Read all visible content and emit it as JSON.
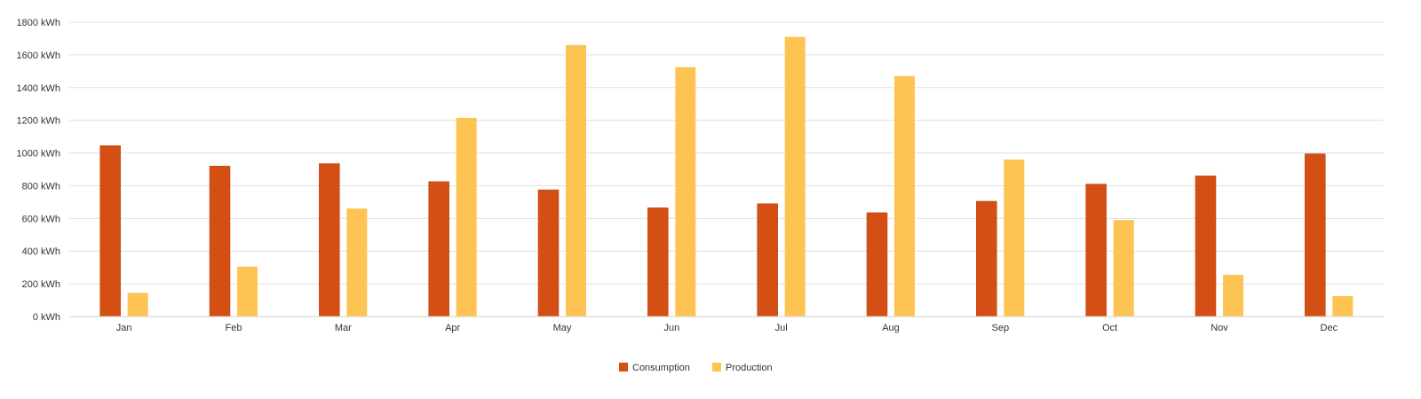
{
  "chart_data": {
    "type": "bar",
    "categories": [
      "Jan",
      "Feb",
      "Mar",
      "Apr",
      "May",
      "Jun",
      "Jul",
      "Aug",
      "Sep",
      "Oct",
      "Nov",
      "Dec"
    ],
    "series": [
      {
        "name": "Consumption",
        "color": "#d44f14",
        "values": [
          1045,
          920,
          935,
          825,
          775,
          665,
          690,
          635,
          705,
          810,
          860,
          995
        ]
      },
      {
        "name": "Production",
        "color": "#fdc453",
        "values": [
          145,
          305,
          660,
          1215,
          1660,
          1525,
          1710,
          1470,
          960,
          590,
          255,
          125
        ]
      }
    ],
    "y_ticks": [
      "0 kWh",
      "200 kWh",
      "400 kWh",
      "600 kWh",
      "800 kWh",
      "1000 kWh",
      "1200 kWh",
      "1400 kWh",
      "1600 kWh",
      "1800 kWh"
    ],
    "ylim": [
      0,
      1800
    ],
    "grid": true,
    "legend_position": "bottom-center",
    "title": "",
    "xlabel": "",
    "ylabel": ""
  }
}
